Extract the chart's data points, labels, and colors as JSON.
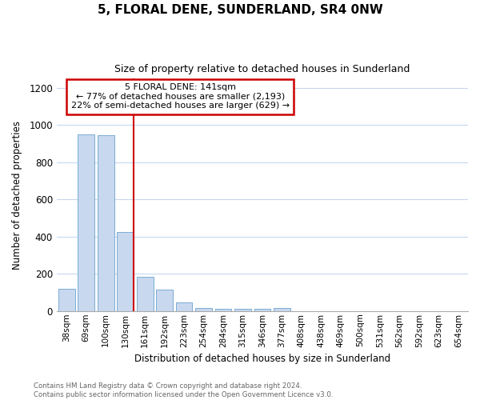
{
  "title": "5, FLORAL DENE, SUNDERLAND, SR4 0NW",
  "subtitle": "Size of property relative to detached houses in Sunderland",
  "xlabel": "Distribution of detached houses by size in Sunderland",
  "ylabel": "Number of detached properties",
  "categories": [
    "38sqm",
    "69sqm",
    "100sqm",
    "130sqm",
    "161sqm",
    "192sqm",
    "223sqm",
    "254sqm",
    "284sqm",
    "315sqm",
    "346sqm",
    "377sqm",
    "408sqm",
    "438sqm",
    "469sqm",
    "500sqm",
    "531sqm",
    "562sqm",
    "592sqm",
    "623sqm",
    "654sqm"
  ],
  "values": [
    120,
    950,
    945,
    425,
    185,
    115,
    45,
    18,
    12,
    12,
    12,
    18,
    0,
    0,
    0,
    0,
    0,
    0,
    0,
    0,
    0
  ],
  "bar_color": "#c8d8ee",
  "bar_edge_color": "#7aadd4",
  "red_line_color": "#cc0000",
  "annotation_box_color": "#cc0000",
  "annotation_line1": "5 FLORAL DENE: 141sqm",
  "annotation_line2": "← 77% of detached houses are smaller (2,193)",
  "annotation_line3": "22% of semi-detached houses are larger (629) →",
  "ylim": [
    0,
    1250
  ],
  "yticks": [
    0,
    200,
    400,
    600,
    800,
    1000,
    1200
  ],
  "background_color": "#ffffff",
  "plot_bg_color": "#ffffff",
  "grid_color": "#c8d8ee",
  "footer_line1": "Contains HM Land Registry data © Crown copyright and database right 2024.",
  "footer_line2": "Contains public sector information licensed under the Open Government Licence v3.0."
}
